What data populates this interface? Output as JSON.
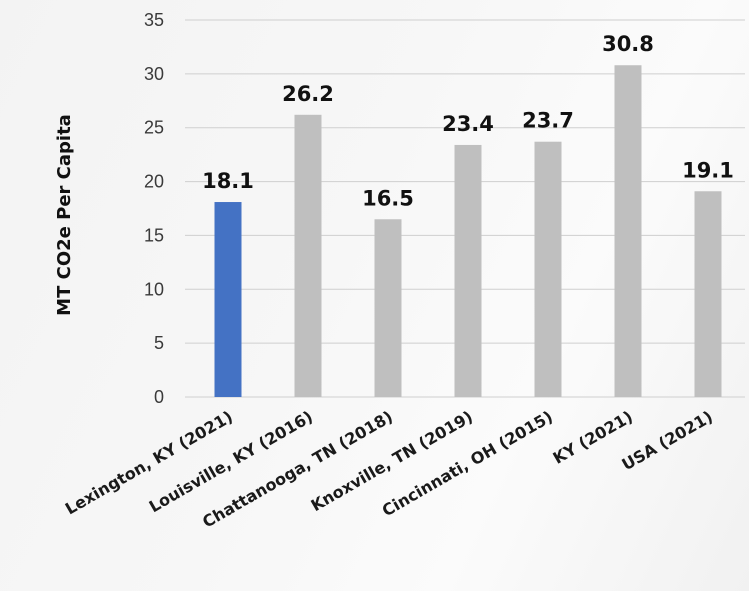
{
  "chart_data": {
    "type": "bar",
    "title": "",
    "xlabel": "",
    "ylabel": "MT CO2e Per Capita",
    "ylim": [
      0,
      35
    ],
    "yticks": [
      0,
      5,
      10,
      15,
      20,
      25,
      30,
      35
    ],
    "grid": true,
    "categories": [
      "Lexington, KY (2021)",
      "Louisville, KY (2016)",
      "Chattanooga, TN (2018)",
      "Knoxville, TN (2019)",
      "Cincinnati, OH (2015)",
      "KY (2021)",
      "USA (2021)"
    ],
    "values": [
      18.1,
      26.2,
      16.5,
      23.4,
      23.7,
      30.8,
      19.1
    ],
    "value_labels": [
      "18.1",
      "26.2",
      "16.5",
      "23.4",
      "23.7",
      "30.8",
      "19.1"
    ],
    "colors": [
      "#4472c4",
      "#bfbfbf",
      "#bfbfbf",
      "#bfbfbf",
      "#bfbfbf",
      "#bfbfbf",
      "#bfbfbf"
    ],
    "grid_color": "#cfcfcf"
  }
}
